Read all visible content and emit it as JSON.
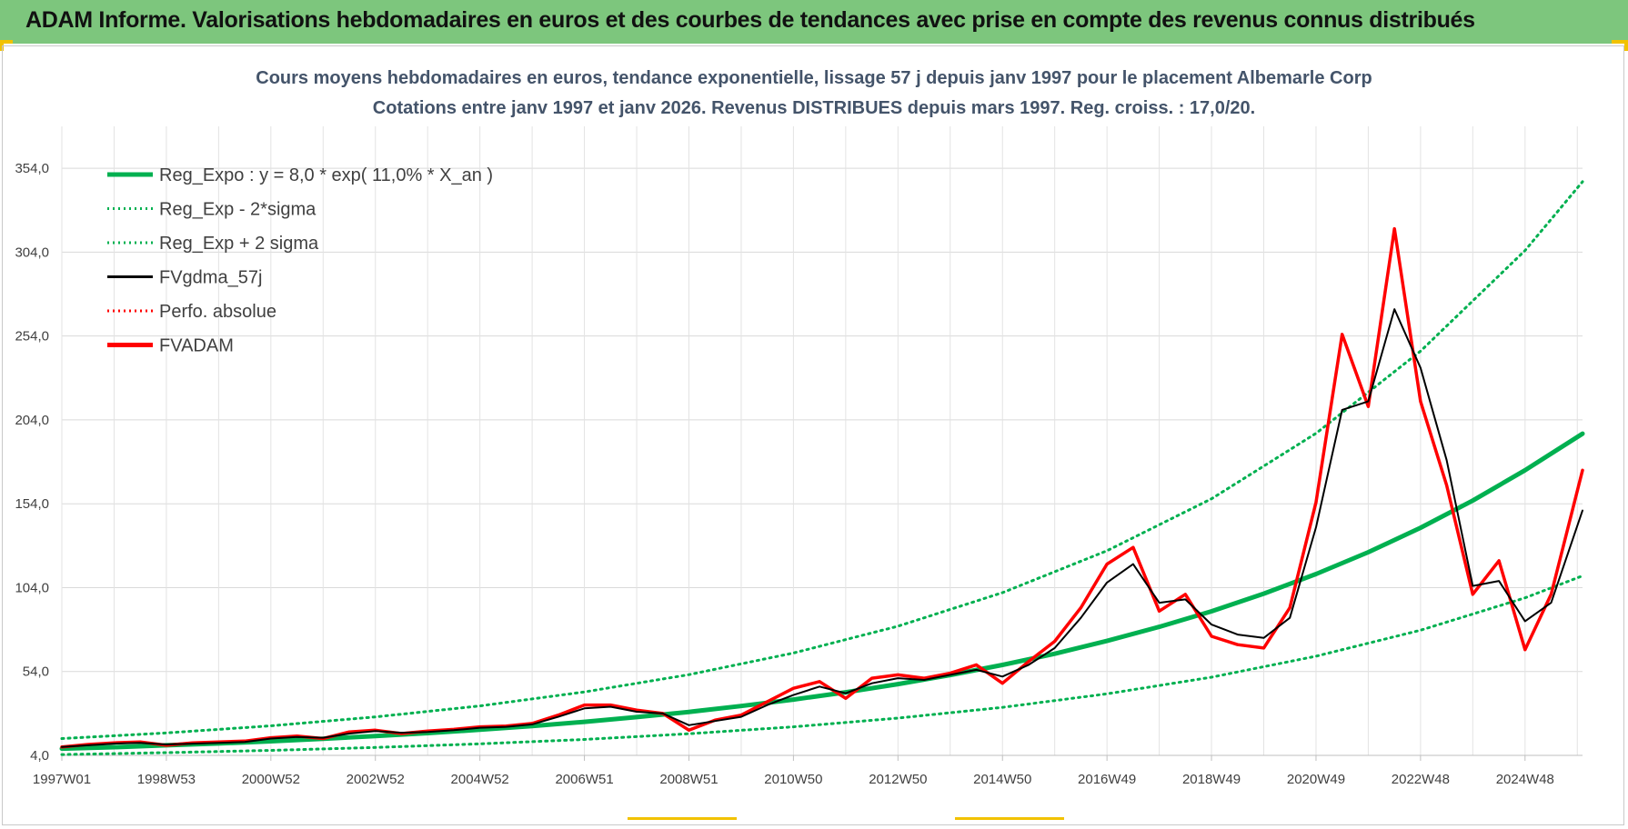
{
  "header": {
    "title": "ADAM Informe. Valorisations hebdomadaires en euros et des courbes de tendances avec prise en compte des revenus connus distribués"
  },
  "chart_data": {
    "type": "line",
    "title": "Cours moyens hebdomadaires en euros, tendance exponentielle, lissage 57 j depuis janv 1997 pour le placement Albemarle Corp",
    "subtitle": "Cotations entre janv 1997 et janv 2026. Revenus DISTRIBUES depuis mars 1997. Reg. croiss. : 17,0/20.",
    "xlabel": "",
    "ylabel": "",
    "ylim": [
      4,
      379
    ],
    "xlim": [
      1997.0,
      2026.1
    ],
    "yticks": [
      "354,0",
      "304,0",
      "254,0",
      "204,0",
      "154,0",
      "104,0",
      "54,0",
      "4,0"
    ],
    "ytick_values": [
      354,
      304,
      254,
      204,
      154,
      104,
      54,
      4
    ],
    "xticks": [
      "1997W01",
      "1998W53",
      "2000W52",
      "2002W52",
      "2004W52",
      "2006W51",
      "2008W51",
      "2010W50",
      "2012W50",
      "2014W50",
      "2016W49",
      "2018W49",
      "2020W49",
      "2022W48",
      "2024W48"
    ],
    "xtick_values": [
      1997.0,
      1999.0,
      2001.0,
      2003.0,
      2005.0,
      2007.0,
      2009.0,
      2011.0,
      2013.0,
      2015.0,
      2017.0,
      2019.0,
      2021.0,
      2023.0,
      2025.0
    ],
    "grid": true,
    "legend_position": "top-left",
    "colors": {
      "reg_expo": "#00b050",
      "fvgdma": "#000000",
      "fvadam": "#ff0000",
      "perfo": "#ff0000"
    },
    "series": [
      {
        "name": "Reg_Expo : y = 8,0 * exp( 11,0% *  X_an )",
        "style": "solid-thick",
        "color": "#00b050",
        "x": [
          1997,
          1998,
          1999,
          2000,
          2001,
          2002,
          2003,
          2004,
          2005,
          2006,
          2007,
          2008,
          2009,
          2010,
          2011,
          2012,
          2013,
          2014,
          2015,
          2016,
          2017,
          2018,
          2019,
          2020,
          2021,
          2022,
          2023,
          2024,
          2025,
          2026.1
        ],
        "values": [
          8.0,
          8.9,
          10.0,
          11.1,
          12.4,
          13.9,
          15.5,
          17.3,
          19.3,
          21.5,
          24.0,
          26.8,
          29.9,
          33.4,
          37.3,
          41.6,
          46.5,
          51.9,
          57.9,
          64.6,
          72.2,
          80.6,
          89.9,
          100.4,
          112.1,
          125.1,
          139.7,
          155.9,
          174.0,
          195.8
        ]
      },
      {
        "name": "Reg_Exp - 2*sigma",
        "style": "dotted",
        "color": "#00b050",
        "x": [
          1997,
          1999,
          2001,
          2003,
          2005,
          2007,
          2009,
          2011,
          2013,
          2015,
          2017,
          2019,
          2021,
          2023,
          2025,
          2026.1
        ],
        "values": [
          4.5,
          5.6,
          7.0,
          8.7,
          10.9,
          13.5,
          16.9,
          21.0,
          26.2,
          32.6,
          40.7,
          50.6,
          63.1,
          78.6,
          97.9,
          111.0
        ]
      },
      {
        "name": "Reg_Exp + 2 sigma",
        "style": "dotted",
        "color": "#00b050",
        "x": [
          1997,
          1999,
          2001,
          2003,
          2005,
          2007,
          2009,
          2011,
          2013,
          2015,
          2017,
          2019,
          2021,
          2023,
          2025,
          2026.1
        ],
        "values": [
          14.0,
          17.4,
          21.6,
          26.9,
          33.5,
          41.8,
          52.1,
          65.0,
          81.0,
          101.0,
          126.0,
          157.0,
          196.0,
          245.0,
          305.0,
          346.0
        ]
      },
      {
        "name": "FVgdma_57j",
        "style": "solid",
        "color": "#000000",
        "x": [
          1997.0,
          1997.5,
          1998.0,
          1998.5,
          1999.0,
          1999.5,
          2000.0,
          2000.5,
          2001.0,
          2001.5,
          2002.0,
          2002.5,
          2003.0,
          2003.5,
          2004.0,
          2004.5,
          2005.0,
          2005.5,
          2006.0,
          2006.5,
          2007.0,
          2007.5,
          2008.0,
          2008.5,
          2009.0,
          2009.5,
          2010.0,
          2010.5,
          2011.0,
          2011.5,
          2012.0,
          2012.5,
          2013.0,
          2013.5,
          2014.0,
          2014.5,
          2015.0,
          2015.5,
          2016.0,
          2016.5,
          2017.0,
          2017.5,
          2018.0,
          2018.5,
          2019.0,
          2019.5,
          2020.0,
          2020.5,
          2021.0,
          2021.5,
          2022.0,
          2022.5,
          2023.0,
          2023.5,
          2024.0,
          2024.5,
          2025.0,
          2025.5,
          2026.1
        ],
        "values": [
          9,
          10,
          11,
          11.5,
          10.5,
          11,
          11.5,
          12,
          14,
          15,
          14.5,
          17,
          18.5,
          17.5,
          18,
          19,
          20.5,
          21,
          22.5,
          27,
          32,
          33,
          30,
          29,
          22,
          24.5,
          27,
          34,
          40,
          45,
          41,
          47,
          50,
          49,
          52,
          55,
          51,
          58,
          68,
          86,
          107,
          118,
          95,
          97,
          82,
          76,
          74,
          86,
          140,
          210,
          215,
          270,
          235,
          180,
          105,
          108,
          84,
          95,
          150
        ]
      },
      {
        "name": "Perfo. absolue",
        "style": "dotted",
        "color": "#ff0000",
        "x": [],
        "values": []
      },
      {
        "name": "FVADAM",
        "style": "solid-thick",
        "color": "#ff0000",
        "x": [
          1997.0,
          1997.5,
          1998.0,
          1998.5,
          1999.0,
          1999.5,
          2000.0,
          2000.5,
          2001.0,
          2001.5,
          2002.0,
          2002.5,
          2003.0,
          2003.5,
          2004.0,
          2004.5,
          2005.0,
          2005.5,
          2006.0,
          2006.5,
          2007.0,
          2007.5,
          2008.0,
          2008.5,
          2009.0,
          2009.5,
          2010.0,
          2010.5,
          2011.0,
          2011.5,
          2012.0,
          2012.5,
          2013.0,
          2013.5,
          2014.0,
          2014.5,
          2015.0,
          2015.5,
          2016.0,
          2016.5,
          2017.0,
          2017.5,
          2018.0,
          2018.5,
          2019.0,
          2019.5,
          2020.0,
          2020.5,
          2021.0,
          2021.5,
          2022.0,
          2022.5,
          2023.0,
          2023.5,
          2024.0,
          2024.5,
          2025.0,
          2025.5,
          2026.1
        ],
        "values": [
          9,
          10.5,
          11.5,
          12,
          10,
          11.5,
          12,
          12.5,
          14.5,
          15.5,
          14,
          18,
          19,
          17,
          18.5,
          19.5,
          21,
          21.5,
          23,
          28,
          34,
          34,
          31,
          29,
          19,
          25,
          28,
          36,
          44,
          48,
          38,
          50,
          52,
          50,
          53,
          58,
          47,
          60,
          72,
          92,
          118,
          128,
          90,
          100,
          75,
          70,
          68,
          92,
          155,
          255,
          212,
          318,
          215,
          165,
          100,
          120,
          67,
          100,
          174
        ]
      }
    ]
  }
}
